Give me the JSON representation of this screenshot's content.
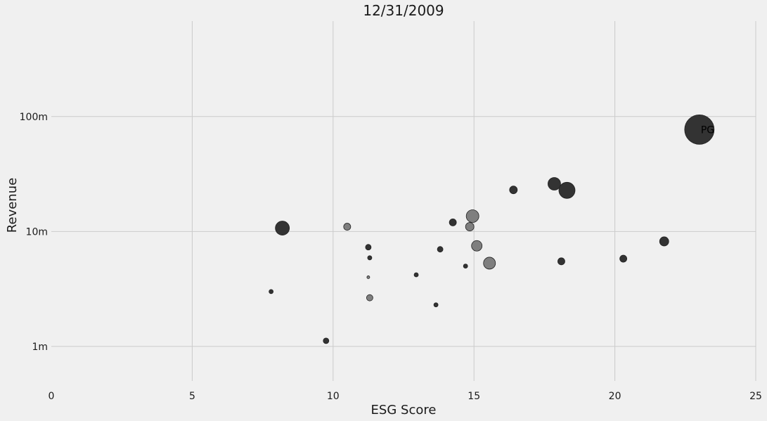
{
  "chart_data": {
    "type": "scatter",
    "title": "12/31/2009",
    "xlabel": "ESG Score",
    "ylabel": "Revenue",
    "xlim": [
      0,
      25
    ],
    "ylim_log10": [
      5.7,
      8.83
    ],
    "x_ticks": [
      0,
      5,
      10,
      15,
      20,
      25
    ],
    "x_tick_labels": [
      "0",
      "5",
      "10",
      "15",
      "20",
      "25"
    ],
    "y_ticks": [
      1000000,
      10000000,
      100000000
    ],
    "y_tick_labels": [
      "1m",
      "10m",
      "100m"
    ],
    "grid": true,
    "colors": {
      "dark": "#333333",
      "light": "#7f7f7f"
    },
    "points": [
      {
        "x": 7.8,
        "y": 3000000,
        "size": 3,
        "tone": "dark"
      },
      {
        "x": 8.2,
        "y": 10700000,
        "size": 10,
        "tone": "dark"
      },
      {
        "x": 9.75,
        "y": 1120000,
        "size": 4,
        "tone": "dark"
      },
      {
        "x": 10.5,
        "y": 11000000,
        "size": 5,
        "tone": "light"
      },
      {
        "x": 11.25,
        "y": 7300000,
        "size": 4,
        "tone": "dark"
      },
      {
        "x": 11.3,
        "y": 5900000,
        "size": 3,
        "tone": "dark"
      },
      {
        "x": 11.25,
        "y": 4000000,
        "size": 2,
        "tone": "light"
      },
      {
        "x": 11.3,
        "y": 2650000,
        "size": 4.5,
        "tone": "light"
      },
      {
        "x": 12.95,
        "y": 4200000,
        "size": 3,
        "tone": "dark"
      },
      {
        "x": 13.65,
        "y": 2300000,
        "size": 3,
        "tone": "dark"
      },
      {
        "x": 13.8,
        "y": 7000000,
        "size": 4,
        "tone": "dark"
      },
      {
        "x": 14.25,
        "y": 12000000,
        "size": 5,
        "tone": "dark"
      },
      {
        "x": 14.7,
        "y": 5000000,
        "size": 3,
        "tone": "dark"
      },
      {
        "x": 14.85,
        "y": 11000000,
        "size": 6,
        "tone": "light"
      },
      {
        "x": 14.95,
        "y": 13600000,
        "size": 9,
        "tone": "light"
      },
      {
        "x": 15.1,
        "y": 7500000,
        "size": 7.5,
        "tone": "light"
      },
      {
        "x": 15.55,
        "y": 5300000,
        "size": 8.5,
        "tone": "light"
      },
      {
        "x": 16.4,
        "y": 23000000,
        "size": 5.5,
        "tone": "dark"
      },
      {
        "x": 17.85,
        "y": 26000000,
        "size": 9,
        "tone": "dark"
      },
      {
        "x": 18.1,
        "y": 5500000,
        "size": 5,
        "tone": "dark"
      },
      {
        "x": 18.3,
        "y": 22800000,
        "size": 11.5,
        "tone": "dark"
      },
      {
        "x": 20.3,
        "y": 5800000,
        "size": 5,
        "tone": "dark"
      },
      {
        "x": 21.75,
        "y": 8200000,
        "size": 6.5,
        "tone": "dark"
      },
      {
        "x": 23.0,
        "y": 77000000,
        "size": 21,
        "tone": "dark",
        "label": "PG"
      }
    ]
  }
}
